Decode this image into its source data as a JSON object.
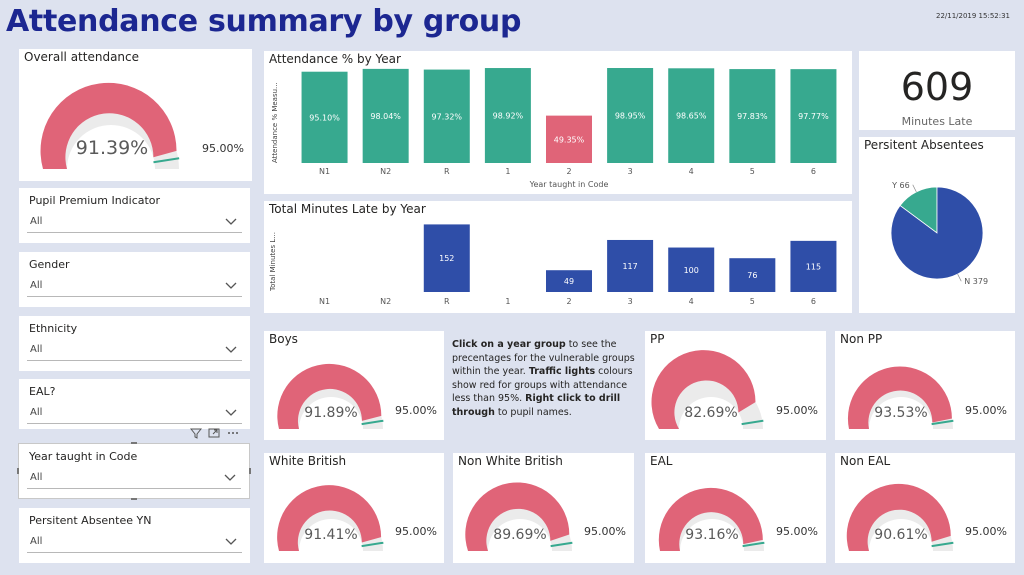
{
  "page": {
    "title": "Attendance summary by group",
    "timestamp": "22/11/2019 15:52:31"
  },
  "overall": {
    "title": "Overall attendance",
    "value": "91.39%",
    "target": "95.00%",
    "value_num": 91.39,
    "target_num": 95.0
  },
  "slicers": [
    {
      "label": "Pupil Premium Indicator",
      "value": "All"
    },
    {
      "label": "Gender",
      "value": "All"
    },
    {
      "label": "Ethnicity",
      "value": "All"
    },
    {
      "label": "EAL?",
      "value": "All"
    },
    {
      "label": "Year taught in Code",
      "value": "All"
    },
    {
      "label": "Persitent Absentee YN",
      "value": "All"
    }
  ],
  "attendance_chart": {
    "title": "Attendance % by Year",
    "ylabel": "Attendance % Measu...",
    "xlabel": "Year taught in Code",
    "categories": [
      "N1",
      "N2",
      "R",
      "1",
      "2",
      "3",
      "4",
      "5",
      "6"
    ],
    "values": [
      95.1,
      98.04,
      97.32,
      98.92,
      49.35,
      98.95,
      98.65,
      97.83,
      97.77
    ],
    "labels": [
      "95.10%",
      "98.04%",
      "97.32%",
      "98.92%",
      "49.35%",
      "98.95%",
      "98.65%",
      "97.83%",
      "97.77%"
    ]
  },
  "minutes_chart": {
    "title": "Total Minutes Late by Year",
    "ylabel": "Total Minutes L...",
    "categories": [
      "N1",
      "N2",
      "R",
      "1",
      "2",
      "3",
      "4",
      "5",
      "6"
    ],
    "values": [
      0,
      0,
      152,
      0,
      49,
      117,
      100,
      76,
      115
    ],
    "labels": [
      "",
      "",
      "152",
      "",
      "49",
      "117",
      "100",
      "76",
      "115"
    ]
  },
  "card": {
    "value": "609",
    "label": "Minutes Late"
  },
  "pie": {
    "title": "Persitent Absentees",
    "slices": [
      {
        "name": "Y",
        "value": 66,
        "label": "Y 66"
      },
      {
        "name": "N",
        "value": 379,
        "label": "N 379"
      }
    ]
  },
  "info": {
    "p1": "Click on a year group",
    "p2": " to see the precentages for the vulnerable groups within the year. ",
    "p3": "Traffic lights",
    "p4": " colours show red for groups with attendance less than 95%. ",
    "p5": "Right click to drill through",
    "p6": " to pupil names."
  },
  "gauges": [
    {
      "title": "Boys",
      "value": "91.89%",
      "target": "95.00%",
      "value_num": 91.89
    },
    {
      "title": "PP",
      "value": "82.69%",
      "target": "95.00%",
      "value_num": 82.69
    },
    {
      "title": "Non PP",
      "value": "93.53%",
      "target": "95.00%",
      "value_num": 93.53
    },
    {
      "title": "White British",
      "value": "91.41%",
      "target": "95.00%",
      "value_num": 91.41
    },
    {
      "title": "Non White British",
      "value": "89.69%",
      "target": "95.00%",
      "value_num": 89.69
    },
    {
      "title": "EAL",
      "value": "93.16%",
      "target": "95.00%",
      "value_num": 93.16
    },
    {
      "title": "Non EAL",
      "value": "90.61%",
      "target": "95.00%",
      "value_num": 90.61
    }
  ],
  "colors": {
    "teal": "#37a98f",
    "red": "#e06478",
    "blue": "#2f4ea8",
    "gauge_bg": "#ebebeb",
    "target_line": "#37a98f",
    "title_blue": "#1c2791"
  }
}
